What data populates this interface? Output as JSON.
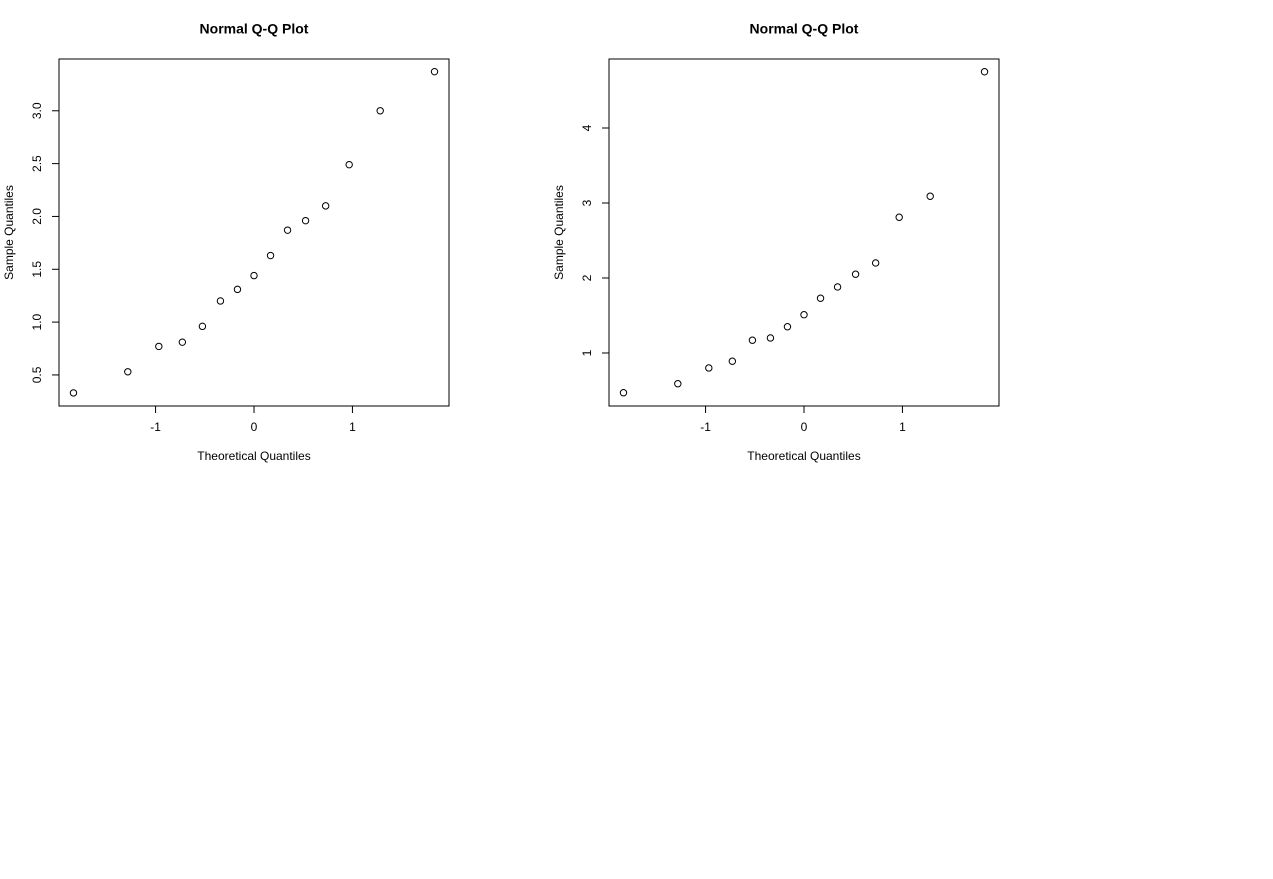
{
  "chart_data": [
    {
      "type": "scatter",
      "title": "Normal Q-Q Plot",
      "x_label": "Theoretical Quantiles",
      "y_label": "Sample Quantiles",
      "x": [
        -1.834,
        -1.282,
        -0.967,
        -0.728,
        -0.524,
        -0.341,
        -0.168,
        0,
        0.168,
        0.341,
        0.524,
        0.728,
        0.967,
        1.282,
        1.834
      ],
      "y": [
        0.33,
        0.53,
        0.77,
        0.81,
        0.96,
        1.2,
        1.31,
        1.44,
        1.63,
        1.87,
        1.96,
        2.1,
        2.49,
        3.0,
        3.37
      ],
      "xlim": [
        -1.981,
        1.981
      ],
      "ylim": [
        0.206,
        3.49
      ],
      "xticks": [
        -1,
        0,
        1
      ],
      "yticks": [
        0.5,
        {
          "value": 1,
          "label": "1.0"
        },
        1.5,
        {
          "value": 2,
          "label": "2.0"
        },
        2.5,
        {
          "value": 3,
          "label": "3.0"
        }
      ]
    },
    {
      "type": "scatter",
      "title": "Normal Q-Q Plot",
      "x_label": "Theoretical Quantiles",
      "y_label": "Sample Quantiles",
      "x": [
        -1.834,
        -1.282,
        -0.967,
        -0.728,
        -0.524,
        -0.341,
        -0.168,
        0,
        0.168,
        0.341,
        0.524,
        0.728,
        0.967,
        1.282,
        1.834
      ],
      "y": [
        0.47,
        0.59,
        0.8,
        0.89,
        1.17,
        1.2,
        1.35,
        1.51,
        1.73,
        1.88,
        2.05,
        2.2,
        2.81,
        3.09,
        4.75
      ],
      "xlim": [
        -1.981,
        1.981
      ],
      "ylim": [
        0.293,
        4.92
      ],
      "xticks": [
        -1,
        0,
        1
      ],
      "yticks": [
        1,
        2,
        3,
        4
      ]
    }
  ]
}
